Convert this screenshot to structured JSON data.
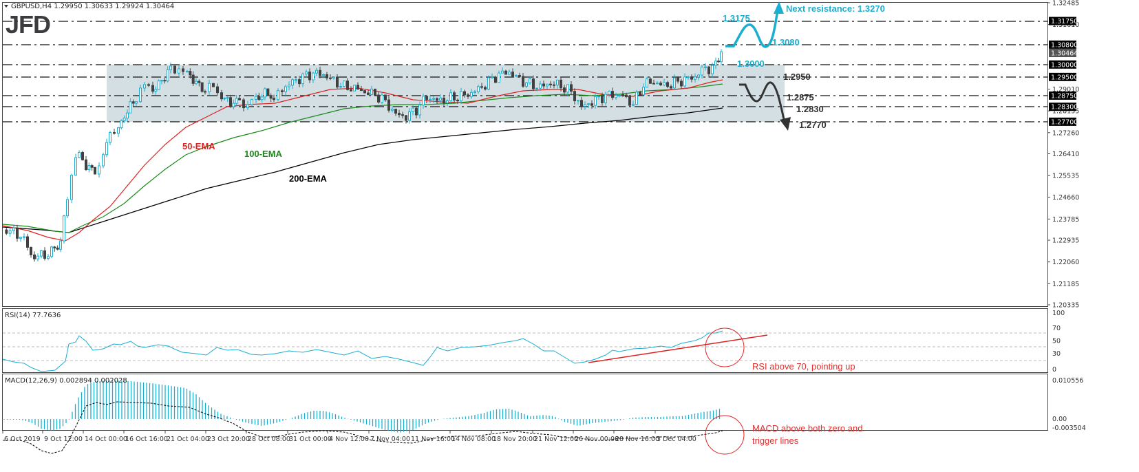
{
  "header": {
    "symbol_info": "GBPUSD,H4  1.29950 1.30633 1.29924 1.30464",
    "logo": "JFD"
  },
  "colors": {
    "bull": "#1aaed0",
    "bear": "#404040",
    "ema50": "#e02020",
    "ema100": "#1a8a1a",
    "ema200": "#000000",
    "range_box": "#d3dfe3",
    "bull_annotation": "#1aaed0",
    "bear_annotation": "#333333",
    "note": "#e03030"
  },
  "price_axis": {
    "ticks": [
      "1.32485",
      "1.31610",
      "1.29010",
      "1.28135",
      "1.27260",
      "1.26410",
      "1.25535",
      "1.24660",
      "1.23785",
      "1.22935",
      "1.22060",
      "1.21185",
      "1.20335"
    ],
    "tagged_levels": [
      "1.31750",
      "1.30800",
      "1.30464",
      "1.30000",
      "1.29500",
      "1.28750",
      "1.28300",
      "1.27700"
    ],
    "current_price": "1.30464"
  },
  "annotations": {
    "ema50": "50-EMA",
    "ema100": "100-EMA",
    "ema200": "200-EMA",
    "bull_high": "1.3175",
    "bull_pullback": "1.3080",
    "next_resistance": "Next resistance: 1.3270",
    "current_level": "1.3000",
    "bear_1": "1.2950",
    "bear_2": "1.2875",
    "bear_3": "1.2830",
    "bear_4": "1.2770"
  },
  "rsi": {
    "label": "RSI(14) 77.7636",
    "ticks": [
      "100",
      "70",
      "50",
      "30",
      "0"
    ],
    "note": "RSI above 70, pointing up"
  },
  "macd": {
    "label": "MACD(12,26,9) 0.002894 0.002028",
    "ticks": [
      "0.010556",
      "0.00",
      "-0.003504"
    ],
    "note_line1": "MACD above both zero and",
    "note_line2": "trigger lines"
  },
  "time_axis": [
    "6 Oct 2019",
    "9 Oct 12:00",
    "14 Oct 00:00",
    "16 Oct 16:00",
    "21 Oct 04:00",
    "23 Oct 20:00",
    "28 Oct 08:00",
    "31 Oct 00:00",
    "4 Nov 12:00",
    "7 Nov 04:00",
    "11 Nov 16:00",
    "14 Nov 08:00",
    "18 Nov 20:00",
    "21 Nov 12:00",
    "26 Nov 00:00",
    "28 Nov 16:00",
    "3 Dec 04:00"
  ],
  "chart_data": [
    {
      "type": "candlestick",
      "title": "GBPUSD,H4",
      "ohlc_last": {
        "open": 1.2995,
        "high": 1.30633,
        "low": 1.29924,
        "close": 1.30464
      },
      "ylim": [
        1.20335,
        1.32485
      ],
      "x_labels": [
        "6 Oct 2019",
        "9 Oct 12:00",
        "14 Oct 00:00",
        "16 Oct 16:00",
        "21 Oct 04:00",
        "23 Oct 20:00",
        "28 Oct 08:00",
        "31 Oct 00:00",
        "4 Nov 12:00",
        "7 Nov 04:00",
        "11 Nov 16:00",
        "14 Nov 08:00",
        "18 Nov 20:00",
        "21 Nov 12:00",
        "26 Nov 00:00",
        "28 Nov 16:00",
        "3 Dec 04:00"
      ],
      "approx_close_path": [
        1.233,
        1.23,
        1.223,
        1.224,
        1.229,
        1.247,
        1.262,
        1.26,
        1.272,
        1.281,
        1.29,
        1.297,
        1.299,
        1.29,
        1.286,
        1.283,
        1.288,
        1.292,
        1.297,
        1.29,
        1.287,
        1.28,
        1.285,
        1.282,
        1.288,
        1.297,
        1.293,
        1.288,
        1.29,
        1.283,
        1.289,
        1.292,
        1.287,
        1.298,
        1.3046
      ],
      "series_overlays": [
        {
          "name": "50-EMA",
          "color": "#e02020"
        },
        {
          "name": "100-EMA",
          "color": "#1a8a1a"
        },
        {
          "name": "200-EMA",
          "color": "#000000"
        }
      ],
      "horizontal_levels": [
        1.3175,
        1.308,
        1.3,
        1.295,
        1.2875,
        1.283,
        1.277
      ],
      "range_box": {
        "top": 1.3,
        "bottom": 1.277
      },
      "annotations": [
        "50-EMA",
        "100-EMA",
        "200-EMA",
        "1.3175",
        "1.3080",
        "Next resistance: 1.3270",
        "1.3000",
        "1.2950",
        "1.2875",
        "1.2830",
        "1.2770"
      ]
    },
    {
      "type": "line",
      "title": "RSI(14) 77.7636",
      "ylim": [
        0,
        100
      ],
      "levels": [
        70,
        50,
        30
      ],
      "last_value": 77.7636,
      "note": "RSI above 70, pointing up"
    },
    {
      "type": "bar",
      "title": "MACD(12,26,9) 0.002894 0.002028",
      "ylim": [
        -0.003504,
        0.010556
      ],
      "series": [
        {
          "name": "MACD",
          "last": 0.002894
        },
        {
          "name": "Signal",
          "last": 0.002028
        }
      ],
      "note": "MACD above both zero and trigger lines"
    }
  ]
}
